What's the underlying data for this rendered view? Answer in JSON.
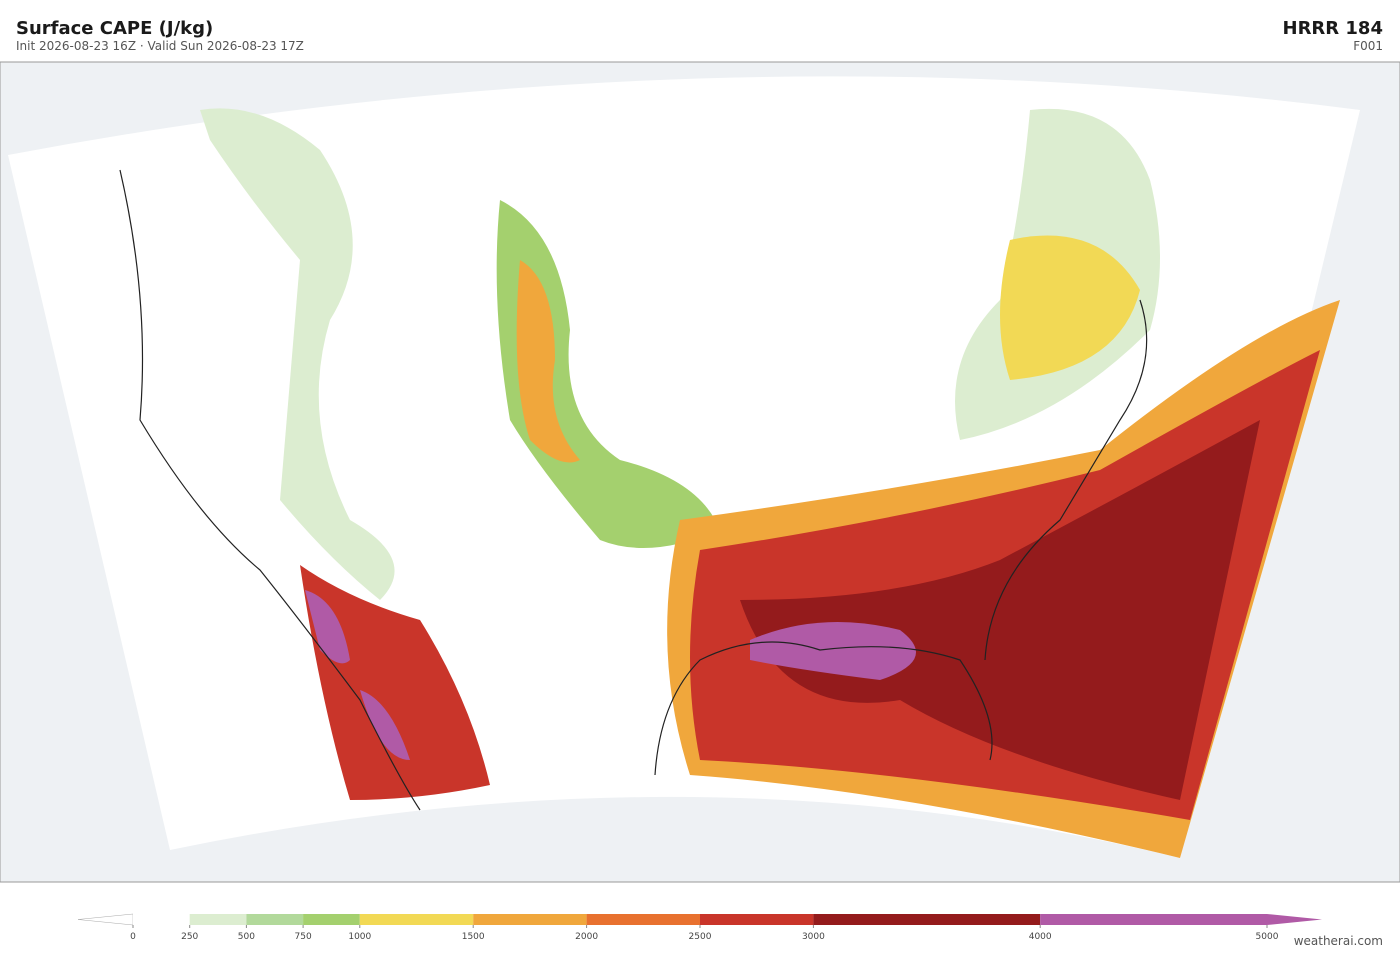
{
  "header": {
    "title": "Surface CAPE  (J/kg)",
    "subtitle": "Init 2026-08-23 16Z   ·   Valid Sun 2026-08-23 17Z",
    "model": "HRRR  184",
    "frame": "F001"
  },
  "colorbar": {
    "ticks": [
      0,
      250,
      500,
      750,
      1000,
      1500,
      2000,
      2500,
      3000,
      4000,
      5000
    ],
    "colors": [
      "#ffffff",
      "#dcedd0",
      "#b2d99b",
      "#a4d06e",
      "#f2d955",
      "#f0a73c",
      "#e8712f",
      "#c9352a",
      "#941b1c",
      "#b05aa6"
    ]
  },
  "footer": {
    "credit": "weatherai.com"
  }
}
